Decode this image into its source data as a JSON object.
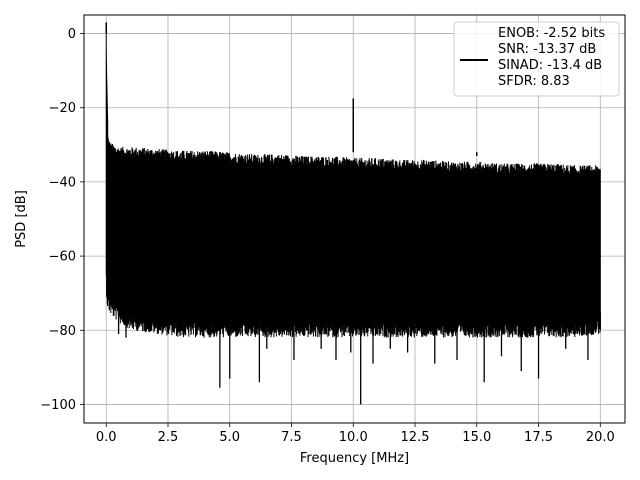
{
  "chart_data": {
    "type": "line",
    "title": "",
    "xlabel": "Frequency [MHz]",
    "ylabel": "PSD [dB]",
    "xlim": [
      -0.9,
      21.0
    ],
    "ylim": [
      -105,
      5
    ],
    "xticks": [
      0.0,
      2.5,
      5.0,
      7.5,
      10.0,
      12.5,
      15.0,
      17.5,
      20.0
    ],
    "xtick_labels": [
      "0.0",
      "2.5",
      "5.0",
      "7.5",
      "10.0",
      "12.5",
      "15.0",
      "17.5",
      "20.0"
    ],
    "yticks": [
      0,
      -20,
      -40,
      -60,
      -80,
      -100
    ],
    "ytick_labels": [
      "0",
      "−20",
      "−40",
      "−60",
      "−80",
      "−100"
    ],
    "grid": true,
    "legend_position": "top-right",
    "legend_lines": [
      "ENOB: -2.52 bits",
      "SNR: -13.37 dB",
      "SINAD: -13.4 dB",
      "SFDR: 8.83"
    ],
    "line_color": "#000000",
    "series": [
      {
        "x": [
          0.0,
          0.02,
          0.05,
          0.1,
          0.2,
          0.5,
          1.0,
          2.0,
          3.0,
          4.0,
          5.0,
          6.0,
          7.0,
          8.0,
          9.0,
          10.0,
          11.0,
          12.0,
          13.0,
          14.0,
          15.0,
          16.0,
          17.0,
          18.0,
          19.0,
          20.0
        ],
        "y_top": [
          0,
          -23,
          -28,
          -30,
          -31,
          -32,
          -32,
          -32.5,
          -33,
          -33,
          -33.5,
          -34,
          -34,
          -34.5,
          -34.5,
          -35,
          -35,
          -35.5,
          -35.5,
          -36,
          -36,
          -36.5,
          -36.5,
          -36.5,
          -37,
          -37
        ],
        "y_bottom": [
          -64,
          -68,
          -70,
          -71,
          -72,
          -74,
          -76,
          -77,
          -78,
          -78,
          -78,
          -78,
          -78,
          -78,
          -78,
          -78,
          -78,
          -78,
          -78,
          -78,
          -78,
          -78,
          -78,
          -78,
          -78,
          -77
        ]
      }
    ],
    "spikes": [
      {
        "x": 0.0,
        "y": 0
      },
      {
        "x": 10.0,
        "y": -17.5
      },
      {
        "x": 15.0,
        "y": -32
      }
    ],
    "dips": [
      {
        "x": 0.5,
        "y": -81
      },
      {
        "x": 0.8,
        "y": -82
      },
      {
        "x": 1.1,
        "y": -78
      },
      {
        "x": 2.2,
        "y": -80
      },
      {
        "x": 3.0,
        "y": -80
      },
      {
        "x": 4.0,
        "y": -80
      },
      {
        "x": 4.6,
        "y": -95.5
      },
      {
        "x": 5.0,
        "y": -93
      },
      {
        "x": 6.2,
        "y": -94
      },
      {
        "x": 6.5,
        "y": -85
      },
      {
        "x": 7.6,
        "y": -88
      },
      {
        "x": 8.7,
        "y": -85
      },
      {
        "x": 9.3,
        "y": -88
      },
      {
        "x": 9.9,
        "y": -86
      },
      {
        "x": 10.3,
        "y": -100
      },
      {
        "x": 10.8,
        "y": -89
      },
      {
        "x": 11.5,
        "y": -85
      },
      {
        "x": 12.2,
        "y": -86
      },
      {
        "x": 13.3,
        "y": -89
      },
      {
        "x": 14.2,
        "y": -88
      },
      {
        "x": 15.3,
        "y": -94
      },
      {
        "x": 16.0,
        "y": -87
      },
      {
        "x": 16.8,
        "y": -91
      },
      {
        "x": 17.5,
        "y": -93
      },
      {
        "x": 18.6,
        "y": -85
      },
      {
        "x": 19.5,
        "y": -88
      },
      {
        "x": 20.0,
        "y": -80
      }
    ]
  }
}
